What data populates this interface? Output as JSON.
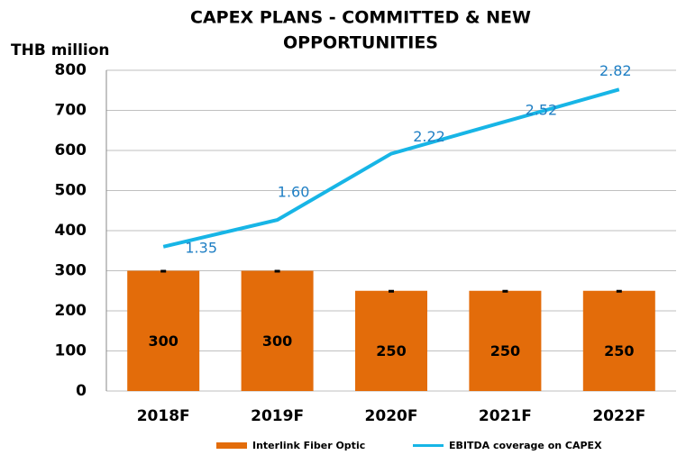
{
  "chart_data": {
    "type": "bar",
    "title_lines": [
      "CAPEX PLANS - COMMITTED & NEW",
      "OPPORTUNITIES"
    ],
    "y_axis_label": "THB million",
    "categories": [
      "2018F",
      "2019F",
      "2020F",
      "2021F",
      "2022F"
    ],
    "series": [
      {
        "name": "Interlink Fiber Optic",
        "color": "#e36c0a",
        "type": "bar",
        "values": [
          300,
          300,
          250,
          250,
          250
        ]
      },
      {
        "name": "EBITDA coverage on CAPEX",
        "color": "#17b5e6",
        "type": "line",
        "axis": "y2",
        "values": [
          1.35,
          1.6,
          2.22,
          2.52,
          2.82
        ],
        "value_labels": [
          "1.35",
          "1.60",
          "2.22",
          "2.52",
          "2.82"
        ]
      }
    ],
    "ylim": [
      0,
      800
    ],
    "yticks": [
      0,
      100,
      200,
      300,
      400,
      500,
      600,
      700,
      800
    ],
    "y2lim": [
      0,
      3
    ],
    "grid": true
  }
}
